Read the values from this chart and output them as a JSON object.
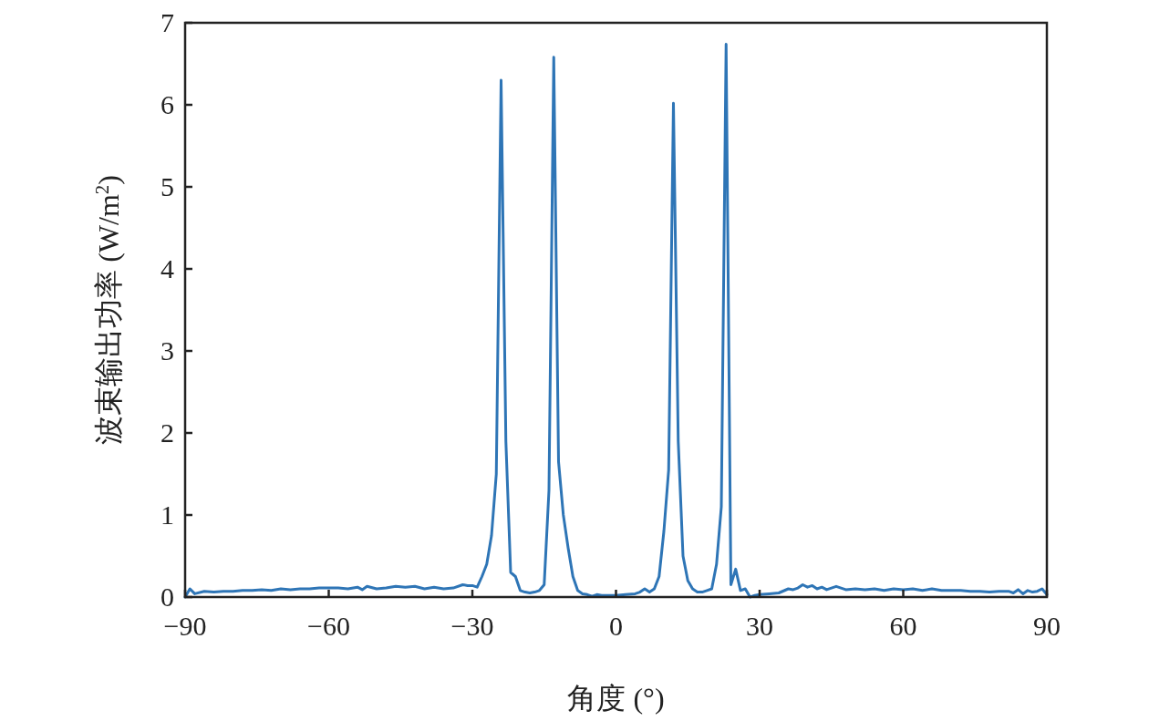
{
  "chart_data": {
    "type": "line",
    "xlabel": "角度 (°)",
    "ylabel": "波束输出功率 (W/m$^{2}$)",
    "x": [
      -90,
      -89,
      -88,
      -86,
      -84,
      -82,
      -80,
      -78,
      -76,
      -74,
      -72,
      -70,
      -68,
      -66,
      -64,
      -62,
      -60,
      -58,
      -56,
      -54,
      -53,
      -52,
      -50,
      -48,
      -46,
      -44,
      -42,
      -40,
      -38,
      -36,
      -34,
      -32,
      -31,
      -30,
      -29,
      -28,
      -27,
      -26,
      -25,
      -24,
      -23,
      -22,
      -21,
      -20,
      -19,
      -18,
      -17,
      -16,
      -15,
      -14,
      -13,
      -12,
      -11,
      -10,
      -9,
      -8,
      -7,
      -6,
      -5,
      -4,
      -3,
      -2,
      0,
      2,
      4,
      5,
      6,
      7,
      8,
      9,
      10,
      11,
      12,
      13,
      14,
      15,
      16,
      17,
      18,
      19,
      20,
      21,
      22,
      23,
      24,
      25,
      26,
      27,
      28,
      29,
      30,
      32,
      34,
      36,
      37,
      38,
      39,
      40,
      41,
      42,
      43,
      44,
      46,
      48,
      50,
      52,
      54,
      56,
      58,
      60,
      62,
      64,
      66,
      68,
      70,
      72,
      74,
      76,
      78,
      80,
      82,
      83,
      84,
      85,
      86,
      87,
      88,
      89,
      90
    ],
    "series": [
      {
        "color": "#2e75b6",
        "values": [
          0.0,
          0.1,
          0.04,
          0.07,
          0.06,
          0.07,
          0.07,
          0.08,
          0.08,
          0.09,
          0.08,
          0.1,
          0.09,
          0.1,
          0.1,
          0.11,
          0.11,
          0.11,
          0.1,
          0.12,
          0.09,
          0.13,
          0.1,
          0.11,
          0.13,
          0.12,
          0.13,
          0.1,
          0.12,
          0.1,
          0.11,
          0.15,
          0.14,
          0.14,
          0.12,
          0.25,
          0.4,
          0.75,
          1.5,
          6.3,
          1.9,
          0.3,
          0.25,
          0.08,
          0.06,
          0.05,
          0.06,
          0.08,
          0.15,
          1.3,
          6.58,
          1.65,
          1.0,
          0.6,
          0.25,
          0.08,
          0.04,
          0.03,
          0.01,
          0.03,
          0.02,
          0.02,
          0.02,
          0.03,
          0.04,
          0.06,
          0.1,
          0.06,
          0.1,
          0.25,
          0.8,
          1.55,
          6.02,
          1.9,
          0.5,
          0.2,
          0.1,
          0.06,
          0.06,
          0.08,
          0.1,
          0.4,
          1.1,
          6.74,
          0.15,
          0.34,
          0.08,
          0.1,
          0.0,
          0.02,
          0.03,
          0.04,
          0.05,
          0.1,
          0.09,
          0.11,
          0.15,
          0.12,
          0.14,
          0.1,
          0.12,
          0.09,
          0.13,
          0.09,
          0.1,
          0.09,
          0.1,
          0.08,
          0.1,
          0.09,
          0.1,
          0.08,
          0.1,
          0.08,
          0.08,
          0.08,
          0.07,
          0.07,
          0.06,
          0.07,
          0.07,
          0.05,
          0.09,
          0.04,
          0.08,
          0.06,
          0.07,
          0.1,
          0.03
        ]
      }
    ],
    "xlim": [
      -90,
      90
    ],
    "xticks": [
      {
        "value": -90,
        "label": "−90"
      },
      {
        "value": -60,
        "label": "−60"
      },
      {
        "value": -30,
        "label": "−30"
      },
      0,
      30,
      60,
      90
    ],
    "ylim": [
      0,
      7
    ],
    "yticks": [
      0,
      1,
      2,
      3,
      4,
      5,
      6,
      7
    ],
    "grid": false
  }
}
